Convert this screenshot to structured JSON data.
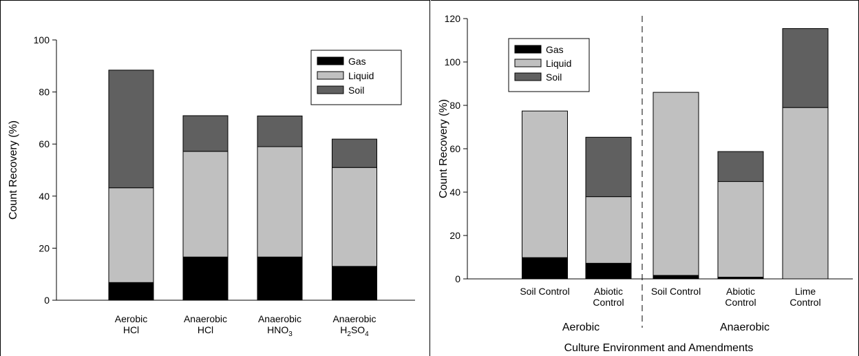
{
  "colors": {
    "gas": "#000000",
    "liquid": "#c0c0c0",
    "soil": "#606060"
  },
  "left": {
    "ylabel": "Count Recovery (%)",
    "xlabel": "",
    "ylim": [
      0,
      100
    ],
    "yticks": [
      "0",
      "20",
      "40",
      "60",
      "80",
      "100"
    ],
    "categories": [
      {
        "line1": "Aerobic",
        "line2": "HCl",
        "line2_sub": ""
      },
      {
        "line1": "Anaerobic",
        "line2": "HCl",
        "line2_sub": ""
      },
      {
        "line1": "Anaerobic",
        "line2": "HNO",
        "line2_sub": "3"
      },
      {
        "line1": "Anaerobic",
        "line2": "H",
        "line2_sub": "2",
        "line2_tail": "SO",
        "line2_tail_sub": "4"
      }
    ],
    "legend": [
      "Gas",
      "Liquid",
      "Soil"
    ]
  },
  "right": {
    "ylabel": "Count Recovery (%)",
    "xlabel": "Culture Environment and Amendments",
    "ylim": [
      0,
      120
    ],
    "yticks": [
      "0",
      "20",
      "40",
      "60",
      "80",
      "100",
      "120"
    ],
    "categories": [
      {
        "line1": "Soil Control",
        "line2": ""
      },
      {
        "line1": "Abiotic",
        "line2": "Control"
      },
      {
        "line1": "Soil Control",
        "line2": ""
      },
      {
        "line1": "Abiotic",
        "line2": "Control"
      },
      {
        "line1": "Lime",
        "line2": "Control"
      }
    ],
    "groups": [
      "Aerobic",
      "Anaerobic"
    ],
    "legend": [
      "Gas",
      "Liquid",
      "Soil"
    ]
  },
  "chart_data": [
    {
      "type": "bar",
      "stacked": true,
      "categories": [
        "Aerobic HCl",
        "Anaerobic HCl",
        "Anaerobic HNO3",
        "Anaerobic H2SO4"
      ],
      "series": [
        {
          "name": "Gas",
          "values": [
            6.8,
            16.6,
            16.6,
            13.0
          ]
        },
        {
          "name": "Liquid",
          "values": [
            36.4,
            40.6,
            42.4,
            38.0
          ]
        },
        {
          "name": "Soil",
          "values": [
            45.2,
            13.7,
            11.8,
            10.9
          ]
        }
      ],
      "ylabel": "Count Recovery (%)",
      "ylim": [
        0,
        100
      ],
      "legend_position": "top-right",
      "grid": false
    },
    {
      "type": "bar",
      "stacked": true,
      "categories": [
        "Soil Control",
        "Abiotic Control",
        "Soil Control",
        "Abiotic Control",
        "Lime Control"
      ],
      "groups": [
        {
          "name": "Aerobic",
          "categories": [
            "Soil Control",
            "Abiotic Control"
          ]
        },
        {
          "name": "Anaerobic",
          "categories": [
            "Soil Control",
            "Abiotic Control",
            "Lime Control"
          ]
        }
      ],
      "series": [
        {
          "name": "Gas",
          "values": [
            9.8,
            7.2,
            1.6,
            0.8,
            0.0
          ]
        },
        {
          "name": "Liquid",
          "values": [
            67.6,
            30.7,
            84.4,
            44.1,
            79.0
          ]
        },
        {
          "name": "Soil",
          "values": [
            0.0,
            27.4,
            0.0,
            13.8,
            36.4
          ]
        }
      ],
      "xlabel": "Culture Environment and Amendments",
      "ylabel": "Count Recovery (%)",
      "ylim": [
        0,
        120
      ],
      "legend_position": "top-left",
      "grid": false
    }
  ]
}
